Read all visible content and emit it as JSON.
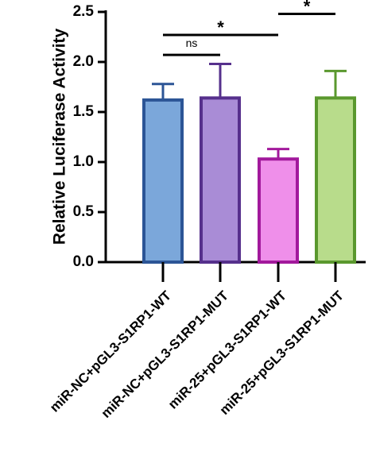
{
  "chart_data": {
    "type": "bar",
    "y_label": "Relative Luciferase Activity",
    "categories": [
      "miR-NC+pGL3-S1RP1-WT",
      "miR-NC+pGL3-S1RP1-MUT",
      "miR-25+pGL3-S1RP1-WT",
      "miR-25+pGL3-S1RP1-MUT"
    ],
    "values": [
      1.62,
      1.64,
      1.03,
      1.64
    ],
    "errors": [
      0.16,
      0.34,
      0.1,
      0.27
    ],
    "colors": [
      "#7ba7da",
      "#a98cd6",
      "#ef8fea",
      "#b8dc8b"
    ],
    "edge_colors": [
      "#2c5596",
      "#56308c",
      "#a2199c",
      "#5a982e"
    ],
    "ylim": [
      0,
      2.5
    ],
    "yticks": [
      {
        "value": 0,
        "label": "0.0"
      },
      0.5,
      {
        "value": 1,
        "label": "1.0"
      },
      1.5,
      {
        "value": 2,
        "label": "2.0"
      },
      2.5
    ],
    "comparisons": [
      {
        "label": "ns",
        "from": 0,
        "to": 1,
        "level": 2.07
      },
      {
        "label": "*",
        "from": 0,
        "to": 2,
        "level": 2.27
      },
      {
        "label": "*",
        "from": 2,
        "to": 3,
        "level": 2.48
      }
    ]
  }
}
